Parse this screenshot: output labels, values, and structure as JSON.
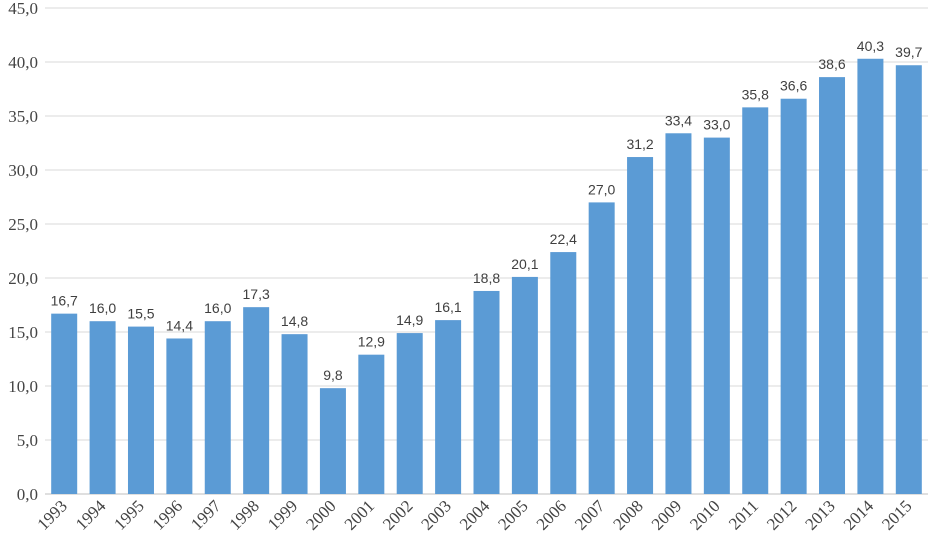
{
  "chart_data": {
    "type": "bar",
    "title": "",
    "xlabel": "",
    "ylabel": "",
    "categories": [
      "1993",
      "1994",
      "1995",
      "1996",
      "1997",
      "1998",
      "1999",
      "2000",
      "2001",
      "2002",
      "2003",
      "2004",
      "2005",
      "2006",
      "2007",
      "2008",
      "2009",
      "2010",
      "2011",
      "2012",
      "2013",
      "2014",
      "2015"
    ],
    "values": [
      16.7,
      16.0,
      15.5,
      14.4,
      16.0,
      17.3,
      14.8,
      9.8,
      12.9,
      14.9,
      16.1,
      18.8,
      20.1,
      22.4,
      27.0,
      31.2,
      33.4,
      33.0,
      35.8,
      36.6,
      38.6,
      40.3,
      39.7
    ],
    "data_labels": [
      "16,7",
      "16,0",
      "15,5",
      "14,4",
      "16,0",
      "17,3",
      "14,8",
      "9,8",
      "12,9",
      "14,9",
      "16,1",
      "18,8",
      "20,1",
      "22,4",
      "27,0",
      "31,2",
      "33,4",
      "33,0",
      "35,8",
      "36,6",
      "38,6",
      "40,3",
      "39,7"
    ],
    "ylim": [
      0,
      45
    ],
    "yticks": [
      0,
      5,
      10,
      15,
      20,
      25,
      30,
      35,
      40,
      45
    ],
    "ytick_labels": [
      "0,0",
      "5,0",
      "10,0",
      "15,0",
      "20,0",
      "25,0",
      "30,0",
      "35,0",
      "40,0",
      "45,0"
    ],
    "grid": true,
    "bar_color": "#5b9bd5"
  }
}
